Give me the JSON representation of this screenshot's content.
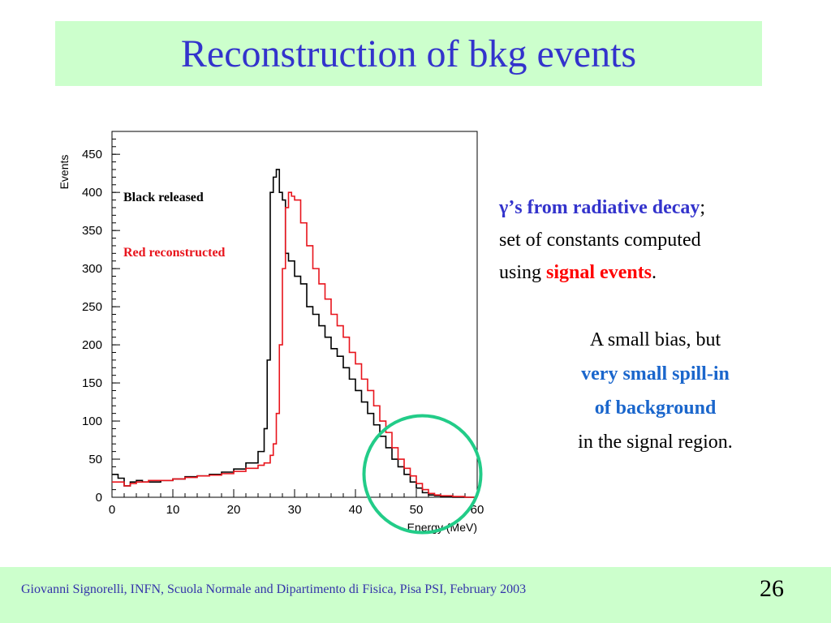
{
  "slide": {
    "title": "Reconstruction of bkg events",
    "footer_credit": "Giovanni Signorelli, INFN, Scuola Normale and  Dipartimento di Fisica, Pisa    PSI, February 2003",
    "page_number": "26"
  },
  "text": {
    "line1_highlight": "γ’s from radiative decay",
    "line1_rest": ";",
    "line2": "set of constants computed",
    "line3_prefix": "using ",
    "line3_highlight": "signal events",
    "line3_suffix": ".",
    "bias_line": "A small bias, but",
    "spill_line1": "very small spill-in",
    "spill_line2": "of background",
    "region_line": "in the signal region."
  },
  "colors": {
    "title": "#3333cc",
    "title_bg": "#ccffcc",
    "highlight_blue": "#3333cc",
    "highlight_red": "#ff0000",
    "spill_blue": "#1a66cc",
    "circle": "#22cc88",
    "series_black": "#000000",
    "series_red": "#e8141c"
  },
  "chart_data": {
    "type": "line",
    "xlabel": "Energy (MeV)",
    "ylabel": "Events",
    "xlim": [
      0,
      60
    ],
    "ylim": [
      0,
      480
    ],
    "xticks": [
      0,
      10,
      20,
      30,
      40,
      50,
      60
    ],
    "yticks": [
      0,
      50,
      100,
      150,
      200,
      250,
      300,
      350,
      400,
      450
    ],
    "annotations": [
      {
        "text": "Black released",
        "color": "#000000"
      },
      {
        "text": "Red reconstructed",
        "color": "#e8141c"
      }
    ],
    "highlight_circle_center": {
      "x": 51,
      "y": 25
    },
    "series": [
      {
        "name": "Black released",
        "color": "#000000",
        "x": [
          0,
          1,
          2,
          3,
          4,
          5,
          6,
          8,
          10,
          12,
          14,
          16,
          18,
          20,
          22,
          24,
          25,
          25.5,
          26,
          26.5,
          27,
          27.5,
          28,
          28.5,
          29,
          30,
          31,
          32,
          33,
          34,
          35,
          36,
          37,
          38,
          39,
          40,
          41,
          42,
          43,
          44,
          45,
          46,
          47,
          48,
          49,
          50,
          51,
          52,
          53,
          54,
          56,
          58,
          60
        ],
        "y": [
          30,
          25,
          15,
          20,
          22,
          20,
          20,
          22,
          24,
          27,
          28,
          30,
          33,
          37,
          45,
          60,
          90,
          180,
          400,
          420,
          430,
          400,
          390,
          320,
          310,
          290,
          280,
          250,
          240,
          225,
          210,
          195,
          185,
          170,
          155,
          140,
          125,
          110,
          95,
          80,
          65,
          50,
          40,
          30,
          20,
          12,
          6,
          3,
          2,
          1,
          0,
          0,
          0
        ]
      },
      {
        "name": "Red reconstructed",
        "color": "#e8141c",
        "x": [
          0,
          1,
          2,
          3,
          4,
          5,
          6,
          8,
          10,
          12,
          14,
          16,
          18,
          20,
          22,
          24,
          25,
          26,
          26.5,
          27,
          27.5,
          28,
          28.5,
          29,
          29.5,
          30,
          31,
          32,
          33,
          34,
          35,
          36,
          37,
          38,
          39,
          40,
          41,
          42,
          43,
          44,
          45,
          46,
          47,
          48,
          49,
          50,
          51,
          52,
          53,
          54,
          56,
          58,
          60
        ],
        "y": [
          20,
          20,
          15,
          18,
          20,
          20,
          22,
          22,
          24,
          26,
          28,
          29,
          31,
          34,
          38,
          42,
          45,
          55,
          70,
          110,
          200,
          300,
          380,
          400,
          395,
          390,
          360,
          330,
          300,
          280,
          260,
          240,
          225,
          210,
          190,
          175,
          155,
          140,
          120,
          100,
          85,
          65,
          50,
          38,
          28,
          18,
          10,
          5,
          3,
          2,
          1,
          0,
          0
        ]
      }
    ]
  }
}
